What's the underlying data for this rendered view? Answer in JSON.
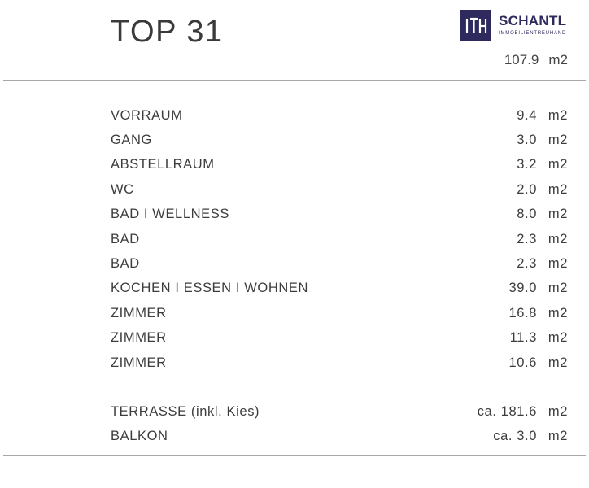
{
  "header": {
    "title": "TOP 31"
  },
  "logo": {
    "name": "SCHANTL",
    "subtitle": "IMMOBILIENTREUHAND"
  },
  "total": {
    "value": "107.9",
    "unit": "m2"
  },
  "rooms": [
    {
      "name": "VORRAUM",
      "value": "9.4",
      "unit": "m2"
    },
    {
      "name": "GANG",
      "value": "3.0",
      "unit": "m2"
    },
    {
      "name": "ABSTELLRAUM",
      "value": "3.2",
      "unit": "m2"
    },
    {
      "name": "WC",
      "value": "2.0",
      "unit": "m2"
    },
    {
      "name": "BAD I WELLNESS",
      "value": "8.0",
      "unit": "m2"
    },
    {
      "name": "BAD",
      "value": "2.3",
      "unit": "m2"
    },
    {
      "name": "BAD",
      "value": "2.3",
      "unit": "m2"
    },
    {
      "name": "KOCHEN I ESSEN I WOHNEN",
      "value": "39.0",
      "unit": "m2"
    },
    {
      "name": "ZIMMER",
      "value": "16.8",
      "unit": "m2"
    },
    {
      "name": "ZIMMER",
      "value": "11.3",
      "unit": "m2"
    },
    {
      "name": "ZIMMER",
      "value": "10.6",
      "unit": "m2"
    }
  ],
  "extras": [
    {
      "name": "TERRASSE (inkl. Kies)",
      "value": "ca. 181.6",
      "unit": "m2"
    },
    {
      "name": "BALKON",
      "value": "ca. 3.0",
      "unit": "m2"
    }
  ]
}
